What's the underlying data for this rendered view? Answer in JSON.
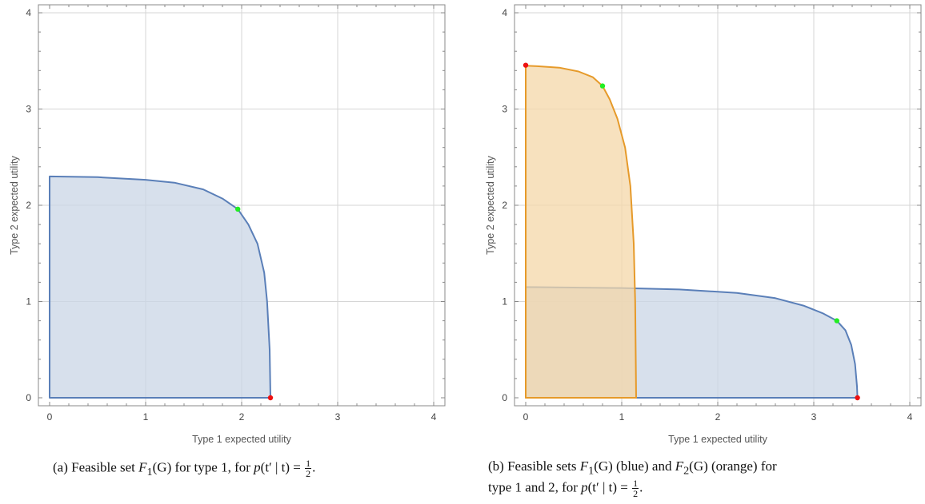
{
  "chart_data": [
    {
      "type": "area",
      "xlabel": "Type 1 expected utility",
      "ylabel": "Type 2 expected utility",
      "xlim": [
        0,
        4
      ],
      "ylim": [
        0,
        4
      ],
      "xticks": [
        "0",
        "1",
        "2",
        "3",
        "4"
      ],
      "yticks": [
        "0",
        "1",
        "2",
        "3",
        "4"
      ],
      "grid": true,
      "regions": [
        {
          "color": "#5a7fb8",
          "fill": "#c9d5e6",
          "boundary": [
            [
              0,
              0
            ],
            [
              0,
              2.3
            ],
            [
              0.5,
              2.292
            ],
            [
              1,
              2.265
            ],
            [
              1.3,
              2.235
            ],
            [
              1.6,
              2.165
            ],
            [
              1.8,
              2.07
            ],
            [
              1.96,
              1.96
            ],
            [
              2.07,
              1.8
            ],
            [
              2.165,
              1.6
            ],
            [
              2.235,
              1.3
            ],
            [
              2.265,
              1
            ],
            [
              2.292,
              0.5
            ],
            [
              2.3,
              0
            ],
            [
              0,
              0
            ]
          ]
        }
      ],
      "points": [
        {
          "x": 1.96,
          "y": 1.96,
          "color": "#22ee22"
        },
        {
          "x": 2.3,
          "y": 0.0,
          "color": "#ee1111"
        }
      ],
      "caption": {
        "label": "(a) Feasible set",
        "f": "F",
        "sub": "1",
        "g": "(G)",
        "mid": "for type 1, for",
        "p": "p",
        "cond": "(t′ | t) =",
        "num": "1",
        "den": "2",
        "end": "."
      }
    },
    {
      "type": "area",
      "xlabel": "Type 1 expected utility",
      "ylabel": "Type 2 expected utility",
      "xlim": [
        0,
        4
      ],
      "ylim": [
        0,
        4
      ],
      "xticks": [
        "0",
        "1",
        "2",
        "3",
        "4"
      ],
      "yticks": [
        "0",
        "1",
        "2",
        "3",
        "4"
      ],
      "grid": true,
      "regions": [
        {
          "color": "#5a7fb8",
          "fill": "#c9d5e6",
          "boundary": [
            [
              0,
              0
            ],
            [
              0,
              1.15
            ],
            [
              1,
              1.14
            ],
            [
              1.6,
              1.125
            ],
            [
              2.2,
              1.09
            ],
            [
              2.6,
              1.035
            ],
            [
              2.9,
              0.955
            ],
            [
              3.1,
              0.875
            ],
            [
              3.24,
              0.8
            ],
            [
              3.33,
              0.7
            ],
            [
              3.39,
              0.55
            ],
            [
              3.43,
              0.35
            ],
            [
              3.45,
              0.12
            ],
            [
              3.455,
              0
            ],
            [
              0,
              0
            ]
          ]
        },
        {
          "color": "#e69a2a",
          "fill": "#f4d7a8",
          "boundary": [
            [
              0,
              0
            ],
            [
              0,
              3.45
            ],
            [
              0.12,
              3.445
            ],
            [
              0.35,
              3.43
            ],
            [
              0.55,
              3.39
            ],
            [
              0.7,
              3.33
            ],
            [
              0.8,
              3.24
            ],
            [
              0.875,
              3.1
            ],
            [
              0.955,
              2.9
            ],
            [
              1.035,
              2.6
            ],
            [
              1.09,
              2.2
            ],
            [
              1.125,
              1.6
            ],
            [
              1.14,
              1.0
            ],
            [
              1.15,
              0
            ],
            [
              0,
              0
            ]
          ]
        }
      ],
      "points": [
        {
          "x": 3.24,
          "y": 0.8,
          "color": "#22ee22"
        },
        {
          "x": 3.455,
          "y": 0.0,
          "color": "#ee1111"
        },
        {
          "x": 0.8,
          "y": 3.24,
          "color": "#22ee22"
        },
        {
          "x": 0.0,
          "y": 3.455,
          "color": "#ee1111"
        }
      ],
      "caption": {
        "label": "(b) Feasible sets",
        "f": "F",
        "sub1": "1",
        "g1": "(G) (blue) and",
        "sub2": "2",
        "g2": "(G) (orange) for",
        "line2a": "type 1 and 2, for",
        "p": "p",
        "cond": "(t′ | t) =",
        "num": "1",
        "den": "2",
        "end": "."
      }
    }
  ]
}
